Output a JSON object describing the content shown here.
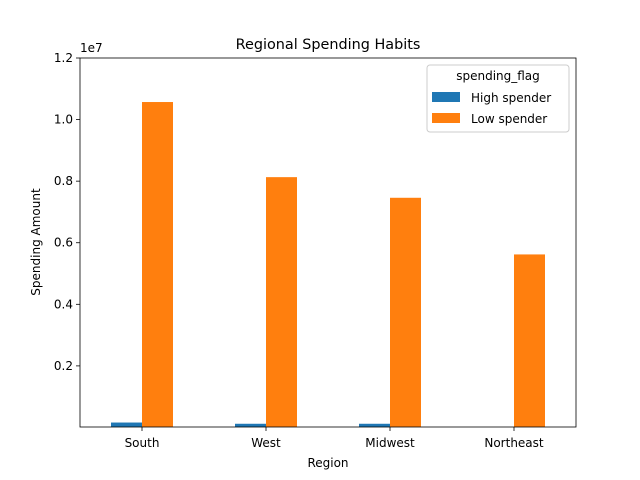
{
  "chart_data": {
    "type": "bar",
    "title": "Regional Spending Habits",
    "xlabel": "Region",
    "ylabel": "Spending Amount",
    "offset_label": "1e7",
    "categories": [
      "South",
      "West",
      "Midwest",
      "Northeast"
    ],
    "yticks": [
      0.2,
      0.4,
      0.6,
      0.8,
      1.0,
      1.2
    ],
    "ytick_labels": [
      "0.2",
      "0.4",
      "0.6",
      "0.8",
      "1.0",
      "1.2"
    ],
    "ylim": [
      0.0015,
      1.2
    ],
    "y_unit_multiplier": "1e7",
    "grid": false,
    "legend": {
      "title": "spending_flag",
      "position": "top-right"
    },
    "series": [
      {
        "name": "High spender",
        "color": "#1f77b4",
        "values": [
          0.016,
          0.012,
          0.012,
          0.0
        ]
      },
      {
        "name": "Low spender",
        "color": "#ff7f0e",
        "values": [
          1.057,
          0.813,
          0.746,
          0.562
        ]
      }
    ]
  }
}
